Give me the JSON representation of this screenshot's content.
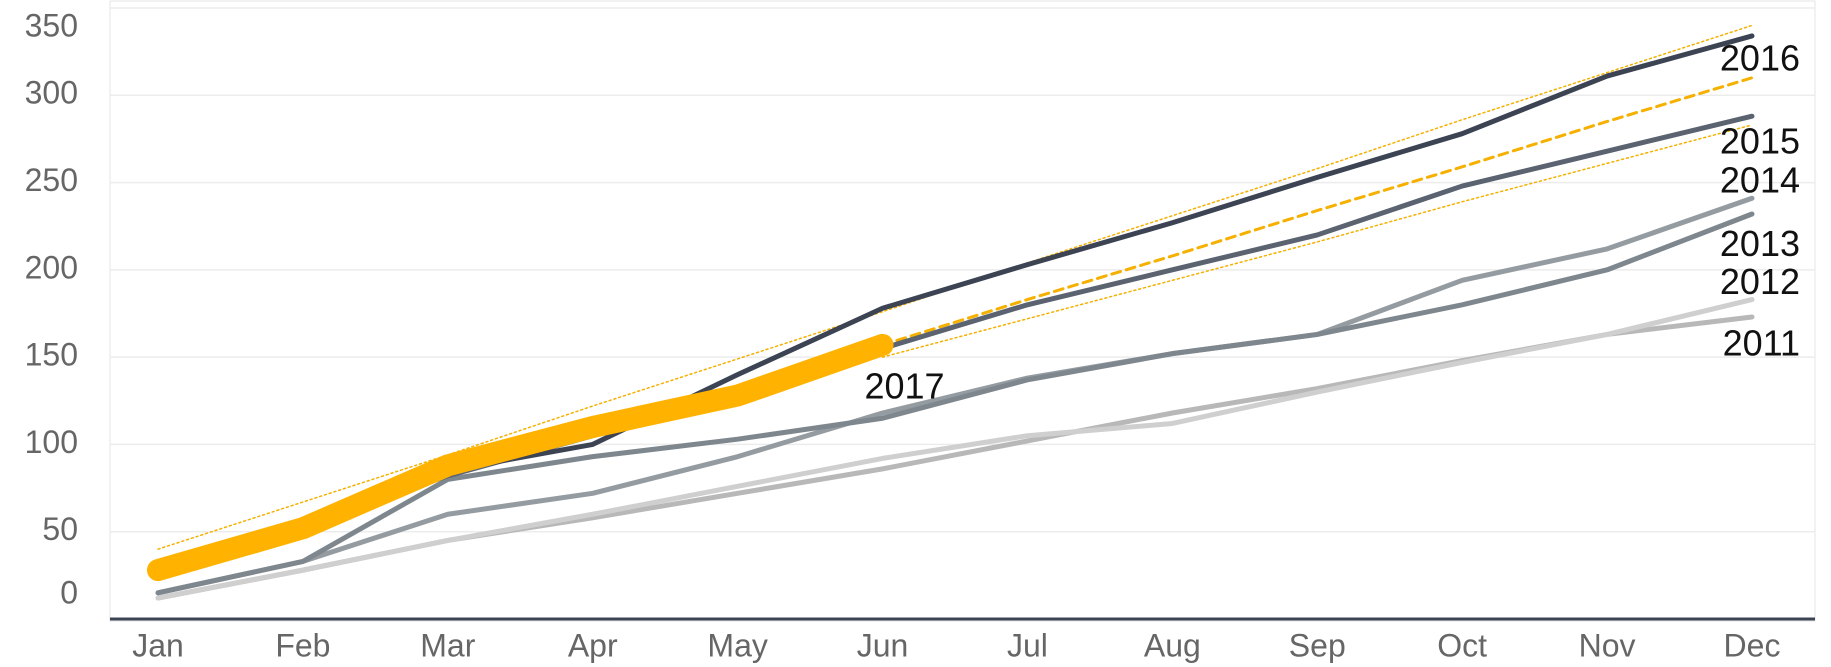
{
  "chart_data": {
    "type": "line",
    "categories": [
      "Jan",
      "Feb",
      "Mar",
      "Apr",
      "May",
      "Jun",
      "Jul",
      "Aug",
      "Sep",
      "Oct",
      "Nov",
      "Dec"
    ],
    "ylim": [
      0,
      350
    ],
    "yticks": [
      0,
      50,
      100,
      150,
      200,
      250,
      300,
      350
    ],
    "grid": true,
    "series": [
      {
        "color": "#f5b000",
        "style": "dotted",
        "values": [
          40,
          67,
          94,
          122,
          149,
          176,
          204,
          231,
          258,
          286,
          313,
          340
        ]
      },
      {
        "color": "#f5b000",
        "style": "dashed",
        "values": [
          null,
          null,
          null,
          null,
          null,
          157,
          183,
          208,
          234,
          259,
          285,
          310
        ]
      },
      {
        "color": "#f5b000",
        "style": "dotted",
        "values": [
          null,
          null,
          null,
          null,
          null,
          150,
          172,
          194,
          216,
          239,
          261,
          283
        ]
      },
      {
        "name": "2011",
        "color": "#b8b8b8",
        "values": [
          12,
          28,
          45,
          58,
          72,
          86,
          102,
          118,
          132,
          148,
          163,
          173
        ]
      },
      {
        "name": "2012",
        "color": "#cfcfcf",
        "values": [
          12,
          28,
          45,
          60,
          76,
          92,
          105,
          112,
          130,
          147,
          163,
          183
        ]
      },
      {
        "name": "2013",
        "color": "#959ca1",
        "values": [
          15,
          33,
          60,
          72,
          93,
          118,
          138,
          152,
          163,
          194,
          212,
          241
        ]
      },
      {
        "name": "2014",
        "color": "#7f878e",
        "values": [
          15,
          33,
          80,
          93,
          103,
          115,
          137,
          152,
          163,
          180,
          200,
          232
        ]
      },
      {
        "name": "2015",
        "color": "#5b6371",
        "values": [
          30,
          55,
          82,
          105,
          128,
          155,
          180,
          200,
          220,
          248,
          268,
          288
        ]
      },
      {
        "name": "2016",
        "color": "#3c4353",
        "values": [
          30,
          55,
          85,
          100,
          140,
          178,
          203,
          227,
          253,
          278,
          311,
          334
        ]
      },
      {
        "name": "2017",
        "color": "#ffb300",
        "thick": true,
        "values": [
          28,
          52,
          88,
          110,
          128,
          157,
          null,
          null,
          null,
          null,
          null,
          null
        ]
      }
    ]
  }
}
